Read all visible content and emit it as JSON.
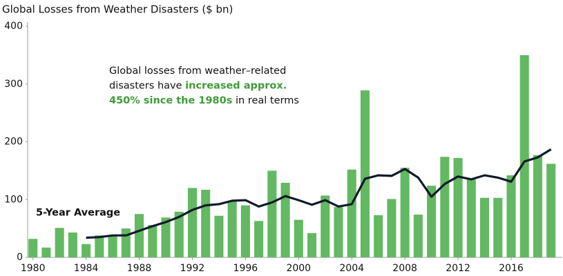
{
  "chart_data": {
    "type": "bar",
    "title": "Global Losses from Weather Disasters ($ bn)",
    "x": [
      1980,
      1981,
      1982,
      1983,
      1984,
      1985,
      1986,
      1987,
      1988,
      1989,
      1990,
      1991,
      1992,
      1993,
      1994,
      1995,
      1996,
      1997,
      1998,
      1999,
      2000,
      2001,
      2002,
      2003,
      2004,
      2005,
      2006,
      2007,
      2008,
      2009,
      2010,
      2011,
      2012,
      2013,
      2014,
      2015,
      2016,
      2017,
      2018,
      2019
    ],
    "series": [
      {
        "type": "bar",
        "color": "#63b862",
        "values": [
          32,
          17,
          51,
          43,
          23,
          38,
          38,
          50,
          75,
          56,
          69,
          79,
          120,
          117,
          72,
          97,
          90,
          63,
          150,
          129,
          65,
          42,
          107,
          87,
          152,
          289,
          73,
          101,
          155,
          74,
          124,
          174,
          172,
          135,
          103,
          103,
          142,
          350,
          177,
          162
        ]
      },
      {
        "type": "line",
        "name": "5-Year Average",
        "color": "#0f1a2b",
        "values": [
          null,
          null,
          null,
          null,
          34,
          35,
          38,
          38,
          46,
          54,
          61,
          70,
          82,
          90,
          92,
          98,
          99,
          88,
          95,
          106,
          99,
          91,
          99,
          88,
          92,
          136,
          142,
          141,
          153,
          138,
          105,
          127,
          140,
          135,
          142,
          138,
          131,
          166,
          173,
          187
        ]
      }
    ],
    "annotation": [
      [
        {
          "text": "Global losses from weather–related",
          "highlight": false
        }
      ],
      [
        {
          "text": "disasters have ",
          "highlight": false
        },
        {
          "text": "increased approx.",
          "highlight": true
        }
      ],
      [
        {
          "text": "450% since the 1980s",
          "highlight": true
        },
        {
          "text": " in real terms",
          "highlight": false
        }
      ]
    ],
    "xlim": [
      1979.6,
      2019.85
    ],
    "xticks": [
      1980,
      1984,
      1988,
      1992,
      1996,
      2000,
      2004,
      2008,
      2012,
      2016
    ],
    "ylim": [
      0,
      400
    ],
    "yticks": [
      0,
      100,
      200,
      300,
      400
    ],
    "grid": false
  }
}
